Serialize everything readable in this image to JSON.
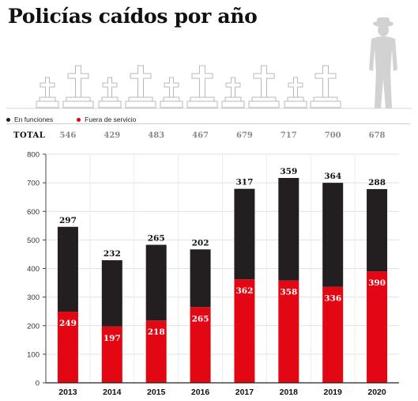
{
  "title": "Policías caídos por año",
  "legend": [
    {
      "label": "En funciones",
      "color": "#231f20"
    },
    {
      "label": "Fuera de servicio",
      "color": "#e30613"
    }
  ],
  "total_label": "TOTAL",
  "chart_data": {
    "type": "bar",
    "stacked": true,
    "title": "Policías caídos por año",
    "categories": [
      "2013",
      "2014",
      "2015",
      "2016",
      "2017",
      "2018",
      "2019",
      "2020"
    ],
    "series": [
      {
        "name": "Fuera de servicio",
        "color": "#e30613",
        "values": [
          249,
          197,
          218,
          265,
          362,
          358,
          336,
          390
        ]
      },
      {
        "name": "En funciones",
        "color": "#231f20",
        "values": [
          297,
          232,
          265,
          202,
          317,
          359,
          364,
          288
        ]
      }
    ],
    "totals": [
      546,
      429,
      483,
      467,
      679,
      717,
      700,
      678
    ],
    "ylim": [
      0,
      800
    ],
    "yticks": [
      0,
      100,
      200,
      300,
      400,
      500,
      600,
      700,
      800
    ],
    "grid": true
  }
}
